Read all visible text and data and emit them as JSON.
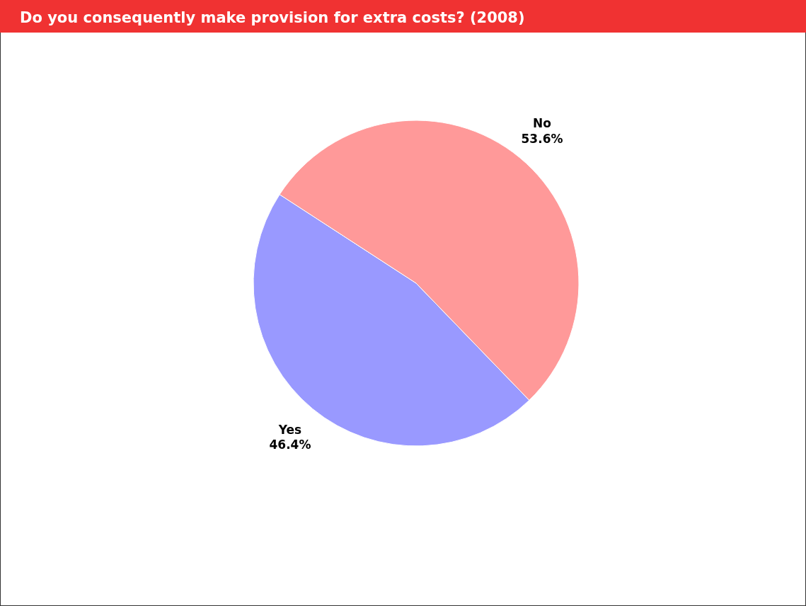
{
  "chart_data": {
    "type": "pie",
    "title": "Do you consequently make provision for extra costs? (2008)",
    "categories": [
      "Yes",
      "No"
    ],
    "values": [
      46.4,
      53.6
    ],
    "colors": [
      "#9999ff",
      "#ff9999"
    ],
    "value_labels": [
      "46.4%",
      "53.6%"
    ]
  }
}
